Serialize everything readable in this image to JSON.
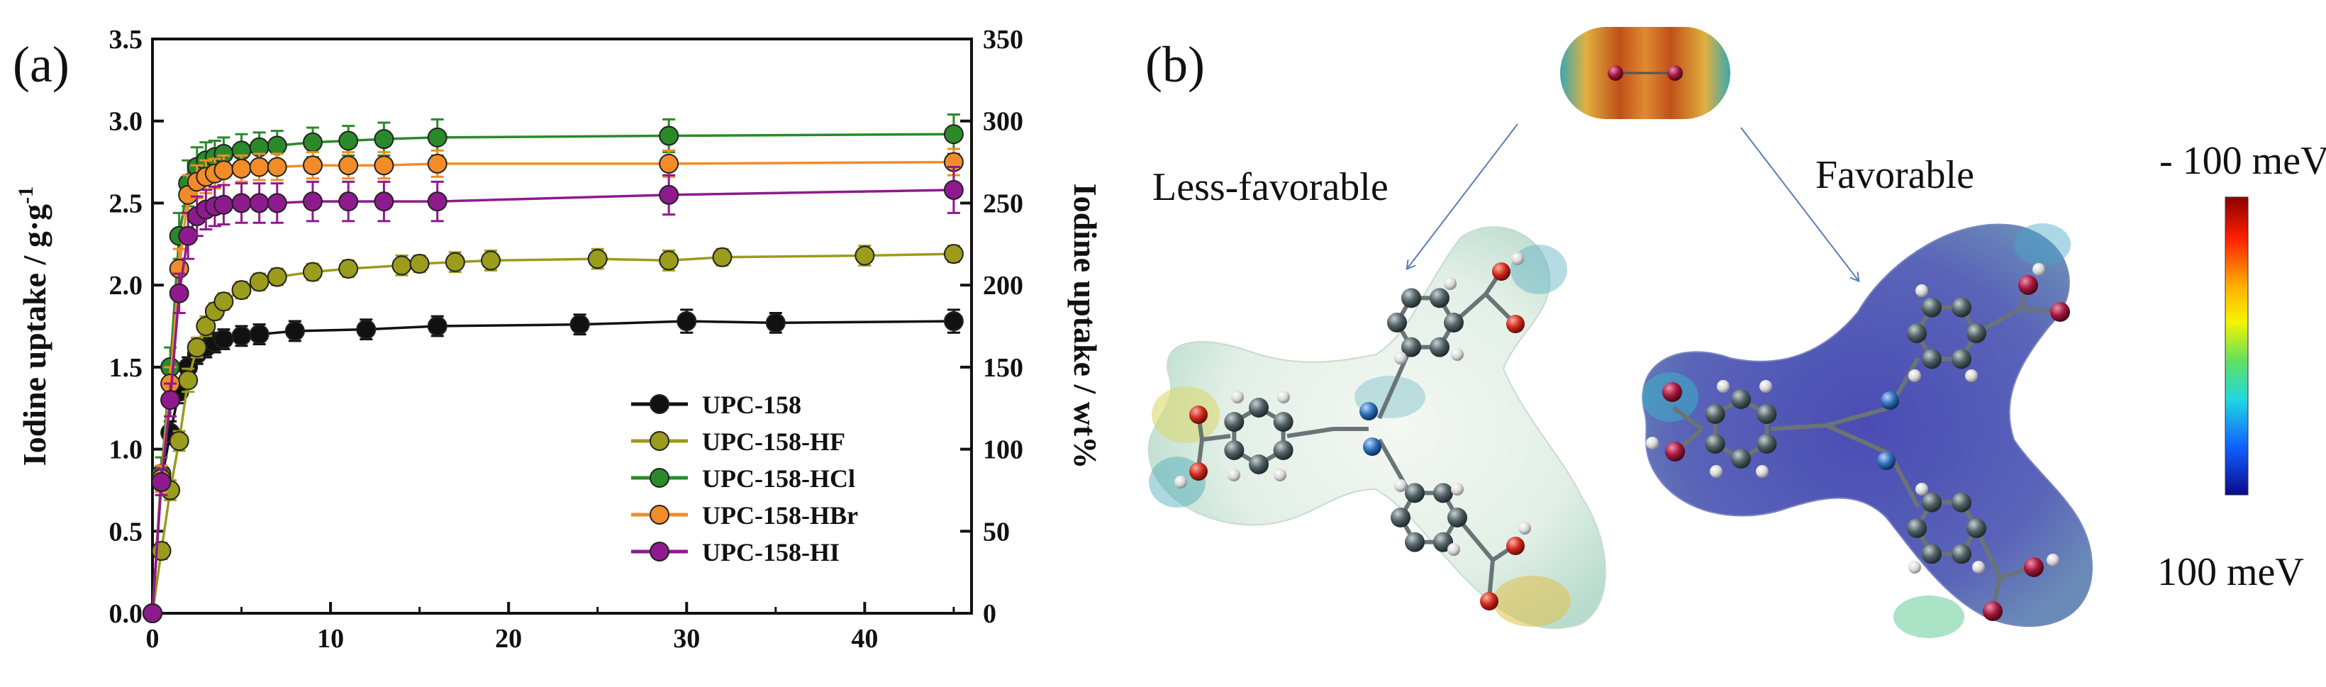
{
  "panel_a_label": "(a)",
  "panel_b_label": "(b)",
  "chart_data": {
    "type": "line",
    "xlim": [
      0,
      46
    ],
    "ylim": [
      0,
      3.5
    ],
    "y2lim": [
      0,
      350
    ],
    "x_ticks": [
      "0",
      "10",
      "20",
      "30",
      "40"
    ],
    "y_ticks": [
      "0.0",
      "0.5",
      "1.0",
      "1.5",
      "2.0",
      "2.5",
      "3.0",
      "3.5"
    ],
    "y2_ticks": [
      "0",
      "50",
      "100",
      "150",
      "200",
      "250",
      "300",
      "350"
    ],
    "xlabel": "",
    "ylabel": "Iodine uptake / g·g",
    "ylabel_sup": "-1",
    "y2label": "Iodine uptake / wt%",
    "legend_position": "lower-right",
    "series": [
      {
        "name": "UPC-158",
        "color": "#111111",
        "x": [
          0,
          0.5,
          1,
          1.5,
          2,
          2.5,
          3,
          3.5,
          4,
          5,
          6,
          8,
          12,
          16,
          24,
          30,
          35,
          45
        ],
        "y": [
          0,
          0.8,
          1.1,
          1.35,
          1.5,
          1.58,
          1.62,
          1.65,
          1.67,
          1.69,
          1.7,
          1.72,
          1.73,
          1.75,
          1.76,
          1.78,
          1.77,
          1.78
        ],
        "err": [
          0,
          0.06,
          0.07,
          0.07,
          0.06,
          0.06,
          0.06,
          0.06,
          0.06,
          0.06,
          0.06,
          0.06,
          0.06,
          0.06,
          0.06,
          0.07,
          0.06,
          0.07
        ]
      },
      {
        "name": "UPC-158-HF",
        "color": "#9b9b1c",
        "x": [
          0,
          0.5,
          1,
          1.5,
          2,
          2.5,
          3,
          3.5,
          4,
          5,
          6,
          7,
          9,
          11,
          14,
          15,
          17,
          19,
          25,
          29,
          32,
          40,
          45
        ],
        "y": [
          0,
          0.38,
          0.75,
          1.05,
          1.42,
          1.62,
          1.75,
          1.84,
          1.9,
          1.97,
          2.02,
          2.05,
          2.08,
          2.1,
          2.12,
          2.13,
          2.14,
          2.15,
          2.16,
          2.15,
          2.17,
          2.18,
          2.19
        ],
        "err": [
          0,
          0.05,
          0.06,
          0.06,
          0.07,
          0.06,
          0.06,
          0.05,
          0.05,
          0.05,
          0.05,
          0.05,
          0.05,
          0.05,
          0.06,
          0.05,
          0.06,
          0.06,
          0.06,
          0.06,
          0.05,
          0.06,
          0.05
        ]
      },
      {
        "name": "UPC-158-HCl",
        "color": "#2a8a2a",
        "x": [
          0,
          0.5,
          1,
          1.5,
          2,
          2.5,
          3,
          3.5,
          4,
          5,
          6,
          7,
          9,
          11,
          13,
          16,
          29,
          45
        ],
        "y": [
          0,
          0.85,
          1.5,
          2.3,
          2.62,
          2.72,
          2.76,
          2.78,
          2.8,
          2.82,
          2.84,
          2.85,
          2.87,
          2.88,
          2.89,
          2.9,
          2.91,
          2.92
        ],
        "err": [
          0,
          0.1,
          0.12,
          0.14,
          0.14,
          0.12,
          0.11,
          0.1,
          0.1,
          0.1,
          0.09,
          0.09,
          0.09,
          0.09,
          0.1,
          0.11,
          0.1,
          0.12
        ]
      },
      {
        "name": "UPC-158-HBr",
        "color": "#f28c28",
        "x": [
          0,
          0.5,
          1,
          1.5,
          2,
          2.5,
          3,
          3.5,
          4,
          5,
          6,
          7,
          9,
          11,
          13,
          16,
          29,
          45
        ],
        "y": [
          0,
          0.82,
          1.4,
          2.1,
          2.55,
          2.63,
          2.66,
          2.68,
          2.7,
          2.71,
          2.72,
          2.72,
          2.73,
          2.73,
          2.73,
          2.74,
          2.74,
          2.75
        ],
        "err": [
          0,
          0.08,
          0.1,
          0.12,
          0.12,
          0.1,
          0.1,
          0.09,
          0.09,
          0.08,
          0.08,
          0.08,
          0.08,
          0.08,
          0.08,
          0.08,
          0.08,
          0.08
        ]
      },
      {
        "name": "UPC-158-HI",
        "color": "#8e1a8e",
        "x": [
          0,
          0.5,
          1,
          1.5,
          2,
          2.5,
          3,
          3.5,
          4,
          5,
          6,
          7,
          9,
          11,
          13,
          16,
          29,
          45
        ],
        "y": [
          0,
          0.8,
          1.3,
          1.95,
          2.3,
          2.42,
          2.46,
          2.48,
          2.49,
          2.5,
          2.5,
          2.5,
          2.51,
          2.51,
          2.51,
          2.51,
          2.55,
          2.58
        ],
        "err": [
          0,
          0.08,
          0.1,
          0.12,
          0.14,
          0.12,
          0.12,
          0.12,
          0.12,
          0.12,
          0.12,
          0.12,
          0.12,
          0.12,
          0.12,
          0.12,
          0.12,
          0.14
        ]
      }
    ]
  },
  "figure_b": {
    "less_favorable_label": "Less-favorable",
    "favorable_label": "Favorable",
    "colorbar_top": "- 100 meV",
    "colorbar_bottom": "100 meV"
  },
  "colors": {
    "carbon": "#4a5a5e",
    "oxygen": "#cc2a1e",
    "nitrogen": "#2f6fb8",
    "hydrogen": "#e8e8e8",
    "iodine": "#b02040",
    "surface_less": "#e6f0ea",
    "surface_fav": "#5758b0"
  }
}
